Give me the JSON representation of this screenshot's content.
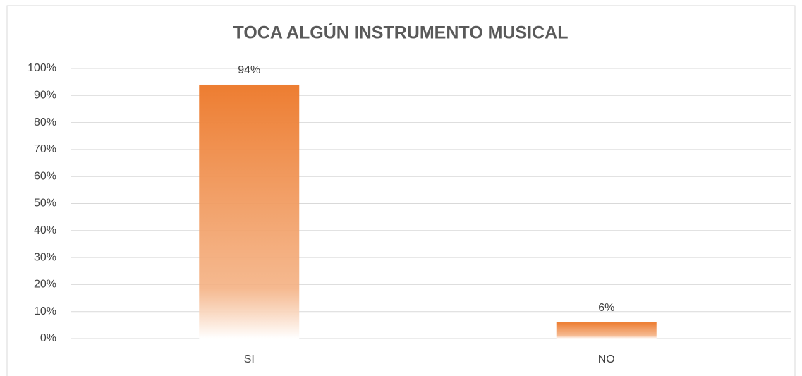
{
  "chart_data": {
    "type": "bar",
    "title": "TOCA ALGÚN INSTRUMENTO MUSICAL",
    "categories": [
      "SI",
      "NO"
    ],
    "values": [
      94,
      6
    ],
    "value_labels": [
      "94%",
      "6%"
    ],
    "color": "#ed7d31",
    "ylim": [
      0,
      100
    ],
    "yticks": [
      {
        "value": 0,
        "label": "0%"
      },
      {
        "value": 10,
        "label": "10%"
      },
      {
        "value": 20,
        "label": "20%"
      },
      {
        "value": 30,
        "label": "30%"
      },
      {
        "value": 40,
        "label": "40%"
      },
      {
        "value": 50,
        "label": "50%"
      },
      {
        "value": 60,
        "label": "60%"
      },
      {
        "value": 70,
        "label": "70%"
      },
      {
        "value": 80,
        "label": "80%"
      },
      {
        "value": 90,
        "label": "90%"
      },
      {
        "value": 100,
        "label": "100%"
      }
    ],
    "grid": true
  }
}
